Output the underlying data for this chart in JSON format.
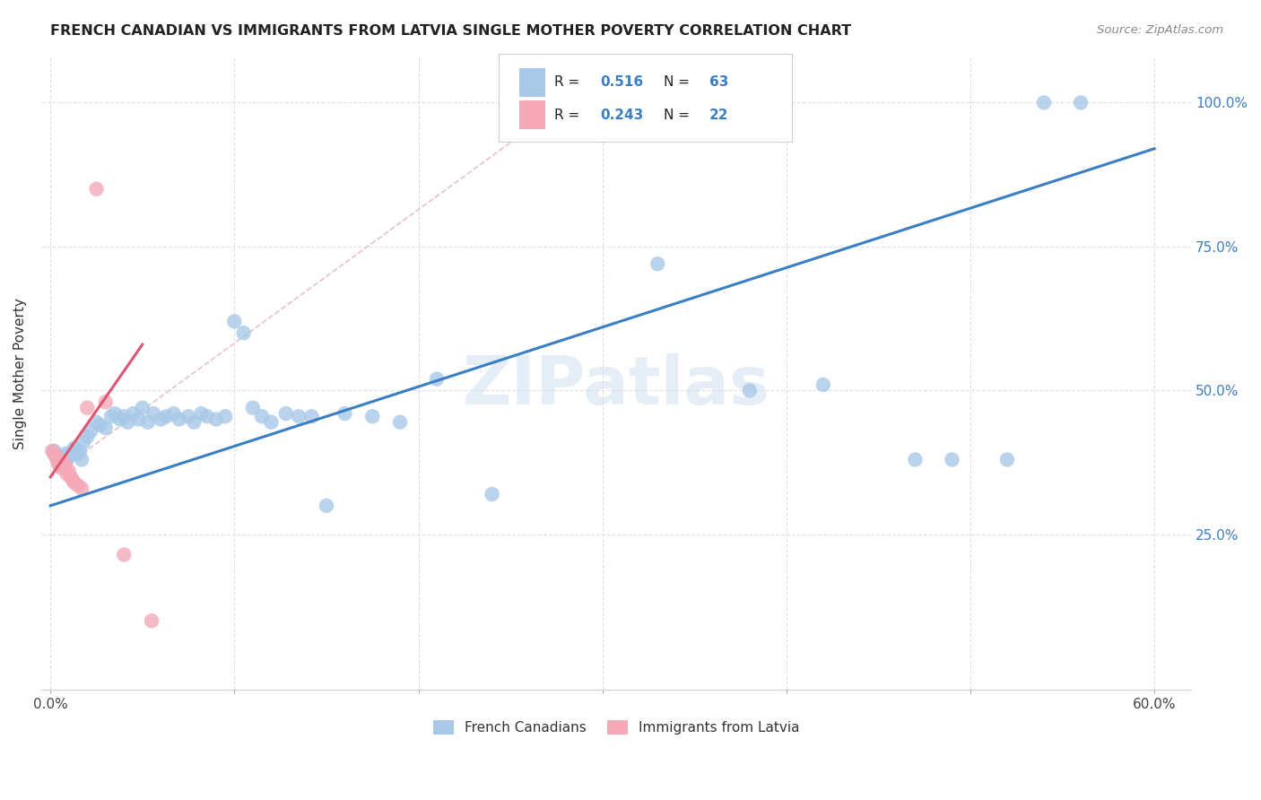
{
  "title": "FRENCH CANADIAN VS IMMIGRANTS FROM LATVIA SINGLE MOTHER POVERTY CORRELATION CHART",
  "source": "Source: ZipAtlas.com",
  "ylabel": "Single Mother Poverty",
  "watermark": "ZIPatlas",
  "blue_R": 0.516,
  "blue_N": 63,
  "pink_R": 0.243,
  "pink_N": 22,
  "blue_color": "#a8c8e8",
  "pink_color": "#f4a8b8",
  "blue_line_color": "#3a7ec6",
  "pink_line_color": "#e05570",
  "ref_line_color": "#e8c0c8",
  "grid_color": "#e0e0e0",
  "legend_label_blue": "French Canadians",
  "legend_label_pink": "Immigrants from Latvia",
  "xlim": [
    -0.005,
    0.62
  ],
  "ylim": [
    -0.02,
    1.08
  ],
  "xtick_positions": [
    0.0,
    0.1,
    0.2,
    0.3,
    0.4,
    0.5,
    0.6
  ],
  "xtick_labels": [
    "0.0%",
    "",
    "",
    "",
    "",
    "",
    "60.0%"
  ],
  "ytick_positions": [
    0.25,
    0.5,
    0.75,
    1.0
  ],
  "ytick_labels": [
    "25.0%",
    "50.0%",
    "75.0%",
    "100.0%"
  ],
  "blue_line_x": [
    0.0,
    0.6
  ],
  "blue_line_y": [
    0.3,
    0.92
  ],
  "pink_line_x": [
    0.0,
    0.05
  ],
  "pink_line_y": [
    0.35,
    0.58
  ],
  "ref_line_x": [
    0.0,
    0.28
  ],
  "ref_line_y": [
    0.35,
    1.0
  ],
  "blue_scatter_x": [
    0.002,
    0.003,
    0.004,
    0.005,
    0.006,
    0.007,
    0.008,
    0.009,
    0.01,
    0.011,
    0.012,
    0.013,
    0.015,
    0.016,
    0.017,
    0.018,
    0.02,
    0.022,
    0.025,
    0.027,
    0.03,
    0.033,
    0.035,
    0.038,
    0.04,
    0.042,
    0.045,
    0.048,
    0.05,
    0.053,
    0.056,
    0.06,
    0.063,
    0.067,
    0.07,
    0.075,
    0.078,
    0.082,
    0.085,
    0.09,
    0.095,
    0.1,
    0.105,
    0.11,
    0.115,
    0.12,
    0.128,
    0.135,
    0.142,
    0.15,
    0.16,
    0.175,
    0.19,
    0.21,
    0.24,
    0.33,
    0.38,
    0.42,
    0.47,
    0.49,
    0.52,
    0.54,
    0.56
  ],
  "blue_scatter_y": [
    0.395,
    0.39,
    0.385,
    0.38,
    0.375,
    0.385,
    0.39,
    0.38,
    0.385,
    0.39,
    0.395,
    0.4,
    0.39,
    0.395,
    0.38,
    0.41,
    0.42,
    0.43,
    0.445,
    0.44,
    0.435,
    0.455,
    0.46,
    0.45,
    0.455,
    0.445,
    0.46,
    0.45,
    0.47,
    0.445,
    0.46,
    0.45,
    0.455,
    0.46,
    0.45,
    0.455,
    0.445,
    0.46,
    0.455,
    0.45,
    0.455,
    0.62,
    0.6,
    0.47,
    0.455,
    0.445,
    0.46,
    0.455,
    0.455,
    0.3,
    0.46,
    0.455,
    0.445,
    0.52,
    0.32,
    0.72,
    0.5,
    0.51,
    0.38,
    0.38,
    0.38,
    1.0,
    1.0
  ],
  "pink_scatter_x": [
    0.001,
    0.002,
    0.003,
    0.004,
    0.004,
    0.005,
    0.005,
    0.006,
    0.007,
    0.008,
    0.009,
    0.01,
    0.011,
    0.012,
    0.013,
    0.015,
    0.017,
    0.02,
    0.025,
    0.03,
    0.04,
    0.055
  ],
  "pink_scatter_y": [
    0.395,
    0.39,
    0.385,
    0.375,
    0.38,
    0.37,
    0.375,
    0.365,
    0.375,
    0.37,
    0.355,
    0.36,
    0.35,
    0.345,
    0.34,
    0.335,
    0.33,
    0.47,
    0.85,
    0.48,
    0.215,
    0.1
  ]
}
